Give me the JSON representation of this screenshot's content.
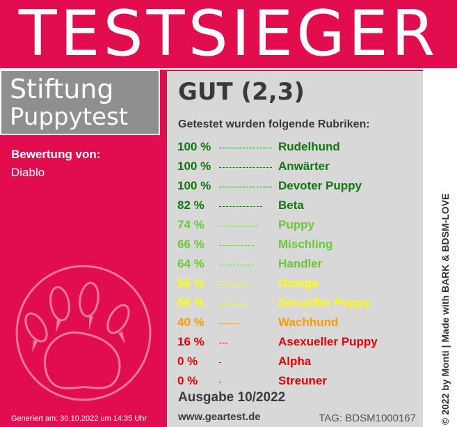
{
  "banner": {
    "title": "TESTSIEGER"
  },
  "org": {
    "line1": "Stiftung",
    "line2": "Puppytest"
  },
  "rating": {
    "label": "Bewertung von:",
    "name": "Diablo"
  },
  "generated": "Generiert am: 30.10.2022 um 14:35 Uhr",
  "result": {
    "grade": "GUT (2,3)",
    "intro": "Getestet wurden folgende Rubriken:"
  },
  "rubrics": [
    {
      "percent": "100 %",
      "value": 100,
      "name": "Rudelhund",
      "color": "#0a7a0a"
    },
    {
      "percent": "100 %",
      "value": 100,
      "name": "Anwärter",
      "color": "#0a7a0a"
    },
    {
      "percent": "100 %",
      "value": 100,
      "name": "Devoter Puppy",
      "color": "#0a7a0a"
    },
    {
      "percent": "82 %",
      "value": 82,
      "name": "Beta",
      "color": "#0a7a0a"
    },
    {
      "percent": "74 %",
      "value": 74,
      "name": "Puppy",
      "color": "#66cc33"
    },
    {
      "percent": "66 %",
      "value": 66,
      "name": "Mischling",
      "color": "#66cc33"
    },
    {
      "percent": "64 %",
      "value": 64,
      "name": "Handler",
      "color": "#66cc33"
    },
    {
      "percent": "56 %",
      "value": 56,
      "name": "Omega",
      "color": "#ffff00"
    },
    {
      "percent": "56 %",
      "value": 56,
      "name": "Sexueller Puppy",
      "color": "#ffff00"
    },
    {
      "percent": "40 %",
      "value": 40,
      "name": "Wachhund",
      "color": "#ff9900"
    },
    {
      "percent": "16 %",
      "value": 16,
      "name": "Asexueller Puppy",
      "color": "#ee0000"
    },
    {
      "percent": "0 %",
      "value": 0,
      "name": "Alpha",
      "color": "#ee0000"
    },
    {
      "percent": "0 %",
      "value": 0,
      "name": "Streuner",
      "color": "#ee0000"
    }
  ],
  "footer": {
    "issue": "Ausgabe 10/2022",
    "website": "www.geartest.de",
    "tag": "TAG: BDSM1000167"
  },
  "credit": "© 2022 by Monti | Made with BARK & BDSM-LOVE",
  "colors": {
    "brand": "#e20d4e",
    "panel": "#d8d8d8",
    "grey_box": "#8f8f8f"
  },
  "icons": {
    "paw": "paw-print-icon"
  }
}
